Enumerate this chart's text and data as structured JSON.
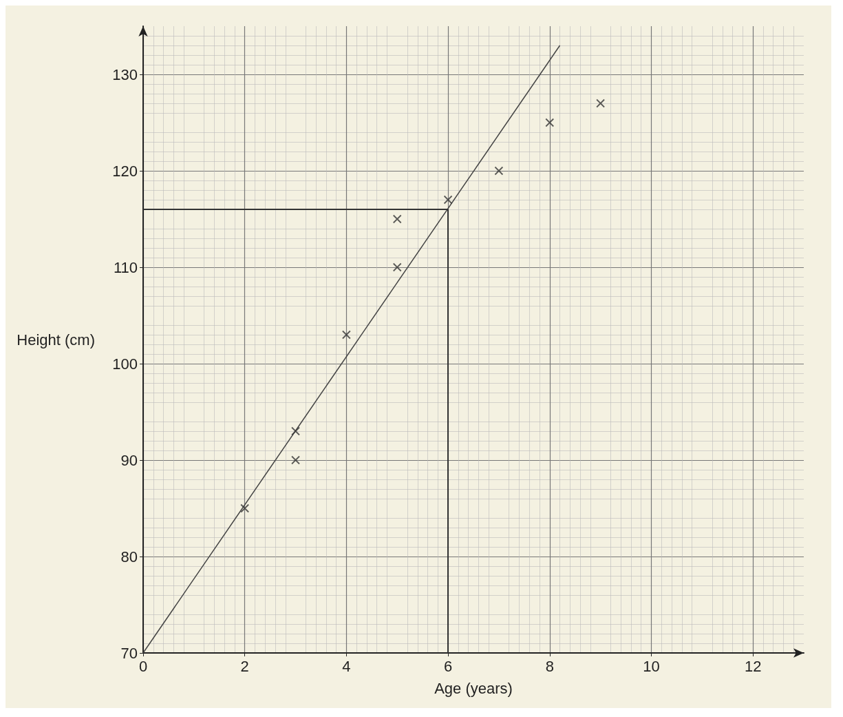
{
  "chart_data": {
    "type": "scatter",
    "xlabel": "Age (years)",
    "ylabel": "Height (cm)",
    "series": [
      {
        "color": "#333333",
        "x": [
          2,
          3,
          3,
          4,
          5,
          5,
          6,
          7,
          8,
          9
        ],
        "values": [
          85,
          93,
          90,
          103,
          115,
          110,
          117,
          120,
          125,
          127
        ],
        "marker": "cross"
      },
      {
        "type": "line",
        "color": "#444444",
        "x": [
          0,
          8.2
        ],
        "values": [
          70,
          133
        ],
        "marker": "none",
        "line_style": "solid"
      }
    ],
    "xlim": [
      0,
      13
    ],
    "xticks": [
      0,
      2,
      4,
      6,
      8,
      10,
      12
    ],
    "ylim": [
      70,
      135
    ],
    "yticks": [
      70,
      80,
      90,
      100,
      110,
      120,
      130
    ],
    "ref_lines": [
      {
        "axis": "y",
        "value": 116,
        "color": "#333333"
      },
      {
        "axis": "x",
        "value": 6,
        "color": "#333333"
      }
    ],
    "grid": true
  }
}
